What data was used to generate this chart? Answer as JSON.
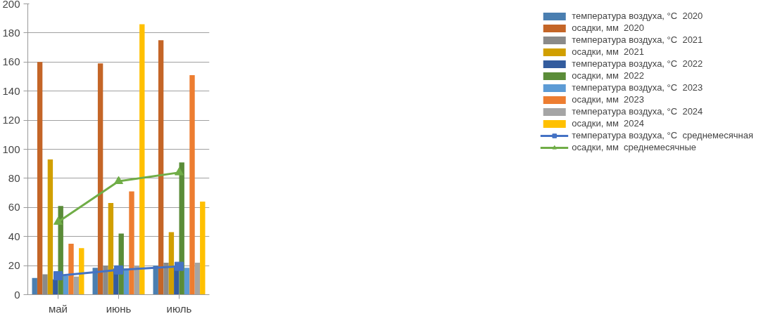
{
  "chart_data": {
    "type": "bar",
    "categories": [
      "май",
      "июнь",
      "июль"
    ],
    "ylim": [
      0,
      200
    ],
    "yticks": [
      0,
      20,
      40,
      60,
      80,
      100,
      120,
      140,
      160,
      180,
      200
    ],
    "grid": "y",
    "legend": "right",
    "series": [
      {
        "name": "температура воздуха, °С  2020",
        "color": "#4a7eb0",
        "values": [
          11.5,
          18.5,
          20
        ]
      },
      {
        "name": "осадки, мм  2020",
        "color": "#c46527",
        "values": [
          160,
          159,
          175
        ]
      },
      {
        "name": "температура воздуха, °С  2021",
        "color": "#8a8a8a",
        "values": [
          14,
          20,
          22
        ]
      },
      {
        "name": "осадки, мм  2021",
        "color": "#d19f00",
        "values": [
          93,
          63,
          43
        ]
      },
      {
        "name": "температура воздуха, °С  2022",
        "color": "#335c9e",
        "values": [
          10.5,
          18,
          20
        ]
      },
      {
        "name": "осадки, мм  2022",
        "color": "#5a8c38",
        "values": [
          61,
          42,
          91
        ]
      },
      {
        "name": "температура воздуха, °С  2023",
        "color": "#5c9bd5",
        "values": [
          13,
          18,
          18.5
        ]
      },
      {
        "name": "осадки, мм  2023",
        "color": "#ed7d31",
        "values": [
          35,
          71,
          151
        ]
      },
      {
        "name": "температура воздуха, °С  2024",
        "color": "#a5a5a5",
        "values": [
          12.5,
          20,
          22
        ]
      },
      {
        "name": "осадки, мм  2024",
        "color": "#ffc000",
        "values": [
          32,
          186,
          64
        ]
      },
      {
        "name": "температура воздуха, °С  среднемесячная",
        "type": "line",
        "marker": "square",
        "color": "#4472c4",
        "values": [
          13,
          17,
          19.5
        ]
      },
      {
        "name": "осадки, мм  среднемесячные",
        "type": "line",
        "marker": "triangle",
        "color": "#70ad47",
        "values": [
          50,
          78,
          84
        ]
      }
    ]
  }
}
